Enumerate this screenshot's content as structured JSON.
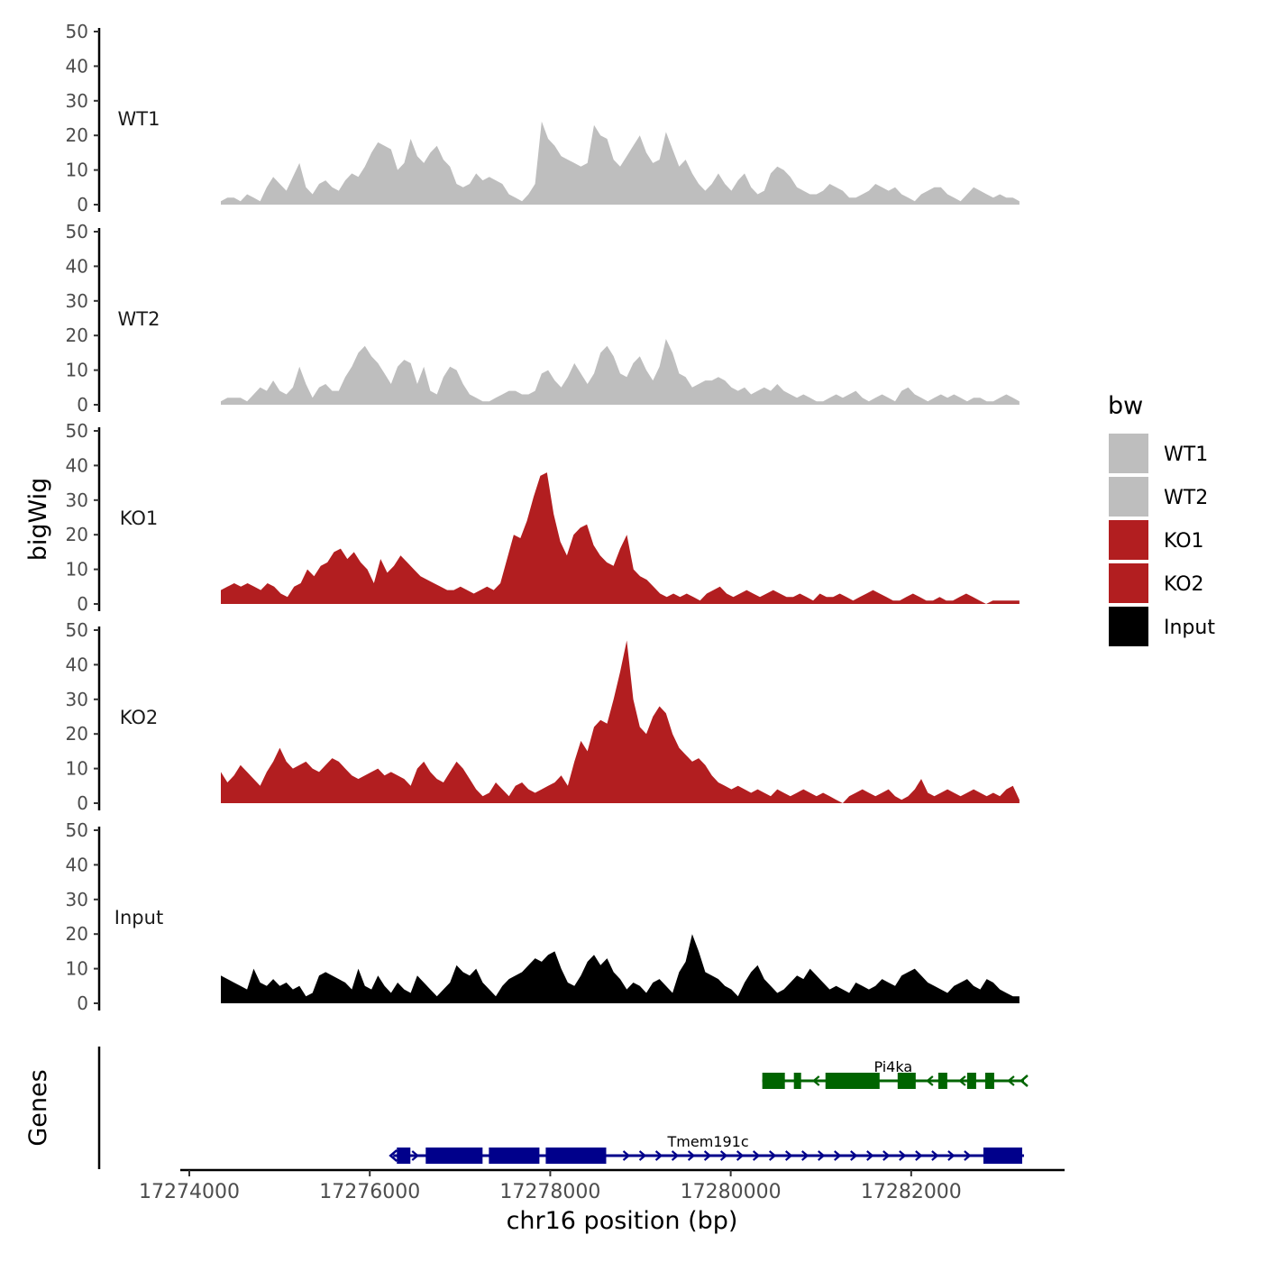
{
  "chart_data": {
    "type": "area",
    "title": "",
    "ylabel": "bigWig",
    "xlabel": "chr16 position (bp)",
    "genes_label": "Genes",
    "ylim": [
      0,
      50
    ],
    "yticks": [
      0,
      10,
      20,
      30,
      40,
      50
    ],
    "ytick_labels": [
      "0",
      "10",
      "20",
      "30",
      "40",
      "50"
    ],
    "xlim": [
      17273900,
      17283700
    ],
    "xticks": [
      17274000,
      17276000,
      17278000,
      17280000,
      17282000
    ],
    "xtick_labels": [
      "17274000",
      "17276000",
      "17278000",
      "17280000",
      "17282000"
    ],
    "legend": {
      "title": "bw",
      "position": "right",
      "entries": [
        {
          "label": "WT1",
          "color": "#bebebe"
        },
        {
          "label": "WT2",
          "color": "#bebebe"
        },
        {
          "label": "KO1",
          "color": "#b21e20"
        },
        {
          "label": "KO2",
          "color": "#b21e20"
        },
        {
          "label": "Input",
          "color": "#000000"
        }
      ]
    },
    "series": [
      {
        "name": "WT1",
        "color": "#bebebe",
        "x_start": 17274350,
        "x_end": 17283200,
        "values": [
          1,
          2,
          2,
          1,
          3,
          2,
          1,
          5,
          8,
          6,
          4,
          8,
          12,
          5,
          3,
          6,
          7,
          5,
          4,
          7,
          9,
          8,
          11,
          15,
          18,
          17,
          16,
          10,
          12,
          19,
          14,
          12,
          15,
          17,
          13,
          11,
          6,
          5,
          6,
          9,
          7,
          8,
          7,
          6,
          3,
          2,
          1,
          3,
          6,
          24,
          19,
          17,
          14,
          13,
          12,
          11,
          12,
          23,
          20,
          19,
          13,
          11,
          14,
          17,
          20,
          15,
          12,
          13,
          21,
          16,
          11,
          13,
          9,
          6,
          4,
          6,
          9,
          6,
          4,
          7,
          9,
          5,
          3,
          4,
          9,
          11,
          10,
          8,
          5,
          4,
          3,
          3,
          4,
          6,
          5,
          4,
          2,
          2,
          3,
          4,
          6,
          5,
          4,
          5,
          3,
          2,
          1,
          3,
          4,
          5,
          5,
          3,
          2,
          1,
          3,
          5,
          4,
          3,
          2,
          3,
          2,
          2,
          1
        ]
      },
      {
        "name": "WT2",
        "color": "#bebebe",
        "x_start": 17274350,
        "x_end": 17283200,
        "values": [
          1,
          2,
          2,
          2,
          1,
          3,
          5,
          4,
          7,
          4,
          3,
          5,
          11,
          6,
          2,
          5,
          6,
          4,
          4,
          8,
          11,
          15,
          17,
          14,
          12,
          9,
          6,
          11,
          13,
          12,
          6,
          11,
          4,
          3,
          8,
          11,
          10,
          6,
          3,
          2,
          1,
          1,
          2,
          3,
          4,
          4,
          3,
          3,
          4,
          9,
          10,
          7,
          5,
          8,
          12,
          9,
          6,
          9,
          15,
          17,
          14,
          9,
          8,
          12,
          14,
          10,
          7,
          11,
          19,
          15,
          9,
          8,
          5,
          6,
          7,
          7,
          8,
          7,
          5,
          4,
          5,
          3,
          4,
          5,
          4,
          6,
          4,
          3,
          2,
          3,
          2,
          1,
          1,
          2,
          3,
          2,
          3,
          4,
          2,
          1,
          2,
          3,
          2,
          1,
          4,
          5,
          3,
          2,
          1,
          2,
          3,
          2,
          3,
          2,
          1,
          2,
          2,
          1,
          1,
          2,
          3,
          2,
          1
        ]
      },
      {
        "name": "KO1",
        "color": "#b21e20",
        "x_start": 17274350,
        "x_end": 17283200,
        "values": [
          4,
          5,
          6,
          5,
          6,
          5,
          4,
          6,
          5,
          3,
          2,
          5,
          6,
          10,
          8,
          11,
          12,
          15,
          16,
          13,
          15,
          12,
          10,
          6,
          13,
          9,
          11,
          14,
          12,
          10,
          8,
          7,
          6,
          5,
          4,
          4,
          5,
          4,
          3,
          4,
          5,
          4,
          6,
          13,
          20,
          19,
          24,
          31,
          37,
          38,
          26,
          18,
          14,
          20,
          22,
          23,
          17,
          14,
          12,
          11,
          16,
          20,
          10,
          8,
          7,
          5,
          3,
          2,
          3,
          2,
          3,
          2,
          1,
          3,
          4,
          5,
          3,
          2,
          3,
          4,
          3,
          2,
          3,
          4,
          3,
          2,
          2,
          3,
          2,
          1,
          3,
          2,
          2,
          3,
          2,
          1,
          2,
          3,
          4,
          3,
          2,
          1,
          1,
          2,
          3,
          2,
          1,
          1,
          2,
          1,
          1,
          2,
          3,
          2,
          1,
          0,
          1,
          1,
          1,
          1,
          1
        ]
      },
      {
        "name": "KO2",
        "color": "#b21e20",
        "x_start": 17274350,
        "x_end": 17283200,
        "values": [
          9,
          6,
          8,
          11,
          9,
          7,
          5,
          9,
          12,
          16,
          12,
          10,
          11,
          12,
          10,
          9,
          11,
          13,
          12,
          10,
          8,
          7,
          8,
          9,
          10,
          8,
          9,
          8,
          7,
          5,
          10,
          12,
          9,
          7,
          6,
          9,
          12,
          10,
          7,
          4,
          2,
          3,
          6,
          4,
          2,
          5,
          6,
          4,
          3,
          4,
          5,
          6,
          8,
          5,
          12,
          18,
          15,
          22,
          24,
          23,
          30,
          38,
          47,
          30,
          22,
          20,
          25,
          28,
          26,
          20,
          16,
          14,
          12,
          13,
          11,
          8,
          6,
          5,
          4,
          5,
          4,
          3,
          4,
          3,
          2,
          4,
          3,
          2,
          3,
          4,
          3,
          2,
          3,
          2,
          1,
          0,
          2,
          3,
          4,
          3,
          2,
          3,
          4,
          2,
          1,
          2,
          4,
          7,
          3,
          2,
          3,
          4,
          3,
          2,
          3,
          4,
          3,
          2,
          3,
          2,
          4,
          5,
          1
        ]
      },
      {
        "name": "Input",
        "color": "#000000",
        "x_start": 17274350,
        "x_end": 17283200,
        "values": [
          8,
          7,
          6,
          5,
          4,
          10,
          6,
          5,
          7,
          5,
          6,
          4,
          5,
          2,
          3,
          8,
          9,
          8,
          7,
          6,
          4,
          10,
          5,
          4,
          8,
          5,
          3,
          6,
          4,
          3,
          8,
          6,
          4,
          2,
          4,
          6,
          11,
          9,
          8,
          10,
          6,
          4,
          2,
          5,
          7,
          8,
          9,
          11,
          13,
          12,
          14,
          15,
          10,
          6,
          5,
          8,
          12,
          14,
          11,
          13,
          9,
          7,
          4,
          6,
          5,
          3,
          6,
          7,
          5,
          3,
          9,
          12,
          20,
          15,
          9,
          8,
          7,
          5,
          4,
          2,
          6,
          9,
          11,
          7,
          5,
          3,
          4,
          6,
          8,
          7,
          10,
          8,
          6,
          4,
          5,
          4,
          3,
          6,
          5,
          4,
          5,
          7,
          6,
          5,
          8,
          9,
          10,
          8,
          6,
          5,
          4,
          3,
          5,
          6,
          7,
          5,
          4,
          7,
          6,
          4,
          3,
          2,
          2
        ]
      }
    ],
    "genes": [
      {
        "name": "Pi4ka",
        "strand": "-",
        "color": "#006400",
        "start": 17280350,
        "end": 17283250,
        "label_x": 17281800,
        "exons": [
          [
            17280350,
            17280600
          ],
          [
            17280700,
            17280780
          ],
          [
            17281050,
            17281650
          ],
          [
            17281850,
            17282050
          ],
          [
            17282300,
            17282400
          ],
          [
            17282620,
            17282720
          ],
          [
            17282820,
            17282920
          ]
        ]
      },
      {
        "name": "Tmem191c",
        "strand": "+",
        "color": "#00008b",
        "start": 17276260,
        "end": 17283250,
        "label_x": 17279750,
        "exons": [
          [
            17276300,
            17276450
          ],
          [
            17276620,
            17277250
          ],
          [
            17277320,
            17277880
          ],
          [
            17277950,
            17278620
          ],
          [
            17282800,
            17283230
          ]
        ]
      }
    ]
  }
}
